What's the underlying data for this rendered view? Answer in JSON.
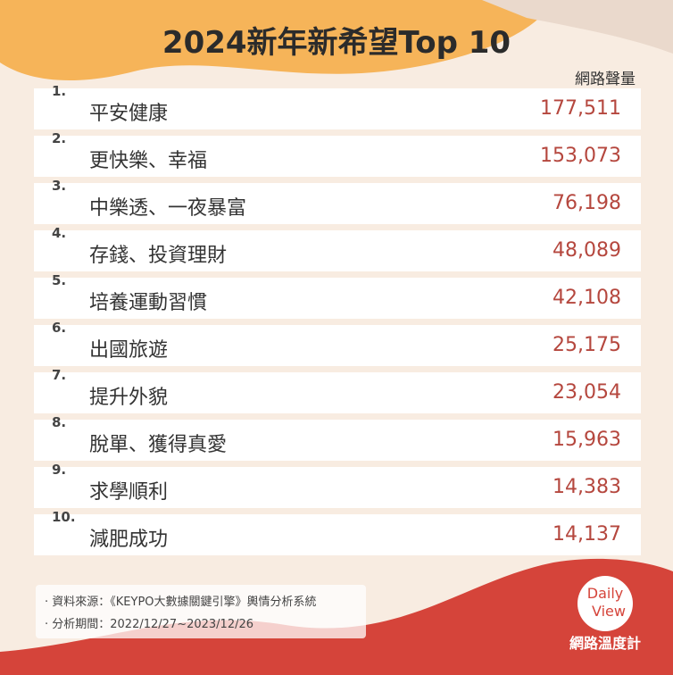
{
  "header": {
    "title": "2024新年新希望Top 10",
    "column_label": "網路聲量"
  },
  "table": {
    "rows": [
      [
        "1.",
        "平安健康",
        "177,511"
      ],
      [
        "2.",
        "更快樂、幸福",
        "153,073"
      ],
      [
        "3.",
        "中樂透、一夜暴富",
        "76,198"
      ],
      [
        "4.",
        "存錢、投資理財",
        "48,089"
      ],
      [
        "5.",
        "培養運動習慣",
        "42,108"
      ],
      [
        "6.",
        "出國旅遊",
        "25,175"
      ],
      [
        "7.",
        "提升外貌",
        "23,054"
      ],
      [
        "8.",
        "脫單、獲得真愛",
        "15,963"
      ],
      [
        "9.",
        "求學順利",
        "14,383"
      ],
      [
        "10.",
        "減肥成功",
        "14,137"
      ]
    ]
  },
  "footer": {
    "notes": [
      "資料來源：《KEYPO大數據關鍵引擎》輿情分析系統",
      "分析期間：2022/12/27~2023/12/26"
    ]
  },
  "logo": {
    "line1": "Daily",
    "line2": "View",
    "caption": "網路溫度計"
  }
}
